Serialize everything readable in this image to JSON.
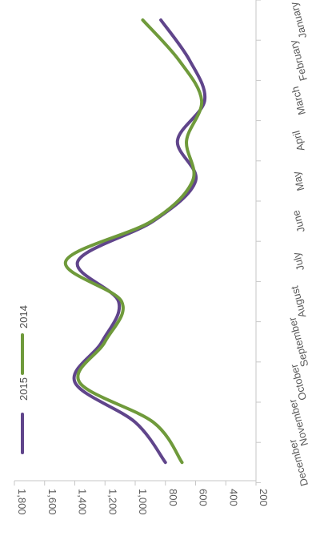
{
  "chart_data": {
    "type": "line",
    "orientation": "rotated-90-clockwise",
    "title": "",
    "xlabel": "",
    "ylabel": "",
    "categories": [
      "January",
      "February",
      "March",
      "April",
      "May",
      "June",
      "July",
      "August",
      "September",
      "October",
      "November",
      "December"
    ],
    "value_axis": {
      "min": 200,
      "max": 1800,
      "ticks": [
        200,
        400,
        600,
        800,
        "1,000",
        "1,200",
        "1,400",
        "1,600",
        "1,800"
      ]
    },
    "series": [
      {
        "name": "2015",
        "color": "#60458b",
        "values": [
          830,
          640,
          540,
          720,
          600,
          880,
          1380,
          1110,
          1220,
          1400,
          1000,
          800
        ]
      },
      {
        "name": "2014",
        "color": "#6f9a3b",
        "values": [
          950,
          710,
          560,
          660,
          620,
          890,
          1460,
          1090,
          1200,
          1370,
          880,
          690
        ]
      }
    ],
    "legend": {
      "placement": "bottom-left",
      "entries": [
        "2015",
        "2014"
      ]
    },
    "grid": false
  }
}
